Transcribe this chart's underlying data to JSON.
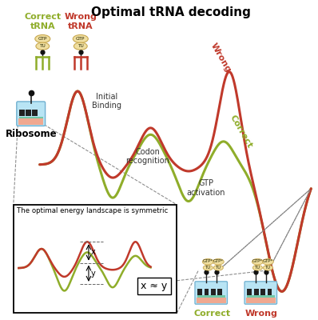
{
  "title": "Optimal tRNA decoding",
  "title_fontsize": 11,
  "bg_color": "#ffffff",
  "correct_color": "#8fad2a",
  "wrong_color": "#c0392b",
  "correct_label": "Correct\ntRNA",
  "wrong_label": "Wrong\ntRNA",
  "inset_text": "The optimal energy landscape is symmetric",
  "inset_eq": "x ≈ y",
  "label_initial": "Initial\nBinding",
  "label_codon": "Codon\nrecognition",
  "label_gtp": "GTP\nactivation",
  "label_wrong_curve": "Wrong",
  "label_correct_curve": "Correct",
  "label_correct_bottom": "Correct",
  "label_wrong_bottom": "Wrong",
  "label_ribosome": "Ribosome",
  "xlim": [
    -0.5,
    10.0
  ],
  "ylim": [
    -4.2,
    5.2
  ]
}
